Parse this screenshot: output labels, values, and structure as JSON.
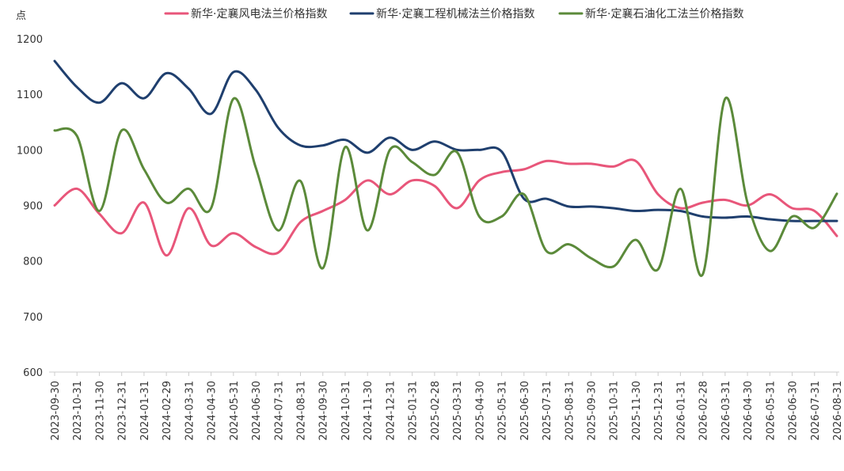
{
  "chart_data": {
    "type": "line",
    "ylabel": "点",
    "ylim": [
      600,
      1200
    ],
    "yticks": [
      600,
      700,
      800,
      900,
      1000,
      1100,
      1200
    ],
    "grid": false,
    "legend_position": "top",
    "x": [
      "2023-09-30",
      "2023-10-31",
      "2023-11-30",
      "2023-12-31",
      "2024-01-31",
      "2024-02-29",
      "2024-03-31",
      "2024-04-30",
      "2024-05-31",
      "2024-06-30",
      "2024-07-31",
      "2024-08-31",
      "2024-09-30",
      "2024-10-31",
      "2024-11-30",
      "2024-12-31",
      "2025-01-31",
      "2025-02-28",
      "2025-03-31",
      "2025-04-30",
      "2025-05-31",
      "2025-06-30",
      "2025-07-31",
      "2025-08-31",
      "2025-09-30",
      "2025-10-31",
      "2025-11-30",
      "2025-12-31",
      "2026-01-31",
      "2026-02-28",
      "2026-03-31",
      "2026-04-30",
      "2026-05-31",
      "2026-06-30",
      "2026-07-31",
      "2026-08-31"
    ],
    "series": [
      {
        "name": "新华·定襄风电法兰价格指数",
        "color": "#E8567A",
        "values": [
          900,
          930,
          885,
          850,
          905,
          810,
          895,
          828,
          850,
          825,
          815,
          870,
          890,
          910,
          945,
          920,
          945,
          935,
          895,
          945,
          960,
          965,
          980,
          975,
          975,
          970,
          980,
          920,
          895,
          905,
          910,
          900,
          920,
          895,
          890,
          845
        ]
      },
      {
        "name": "新华·定襄工程机械法兰价格指数",
        "color": "#1F3F6E",
        "values": [
          1160,
          1113,
          1085,
          1120,
          1093,
          1138,
          1110,
          1065,
          1140,
          1108,
          1040,
          1008,
          1008,
          1018,
          995,
          1022,
          1000,
          1015,
          1000,
          1000,
          997,
          912,
          912,
          898,
          898,
          895,
          890,
          892,
          890,
          880,
          878,
          880,
          875,
          872,
          872,
          872
        ]
      },
      {
        "name": "新华·定襄石油化工法兰价格指数",
        "color": "#5B8A3A",
        "values": [
          1035,
          1025,
          890,
          1035,
          965,
          905,
          930,
          895,
          1092,
          968,
          855,
          944,
          787,
          1005,
          855,
          1000,
          978,
          955,
          996,
          880,
          880,
          920,
          818,
          830,
          805,
          790,
          838,
          785,
          930,
          776,
          1092,
          905,
          818,
          880,
          860,
          921
        ]
      }
    ]
  }
}
